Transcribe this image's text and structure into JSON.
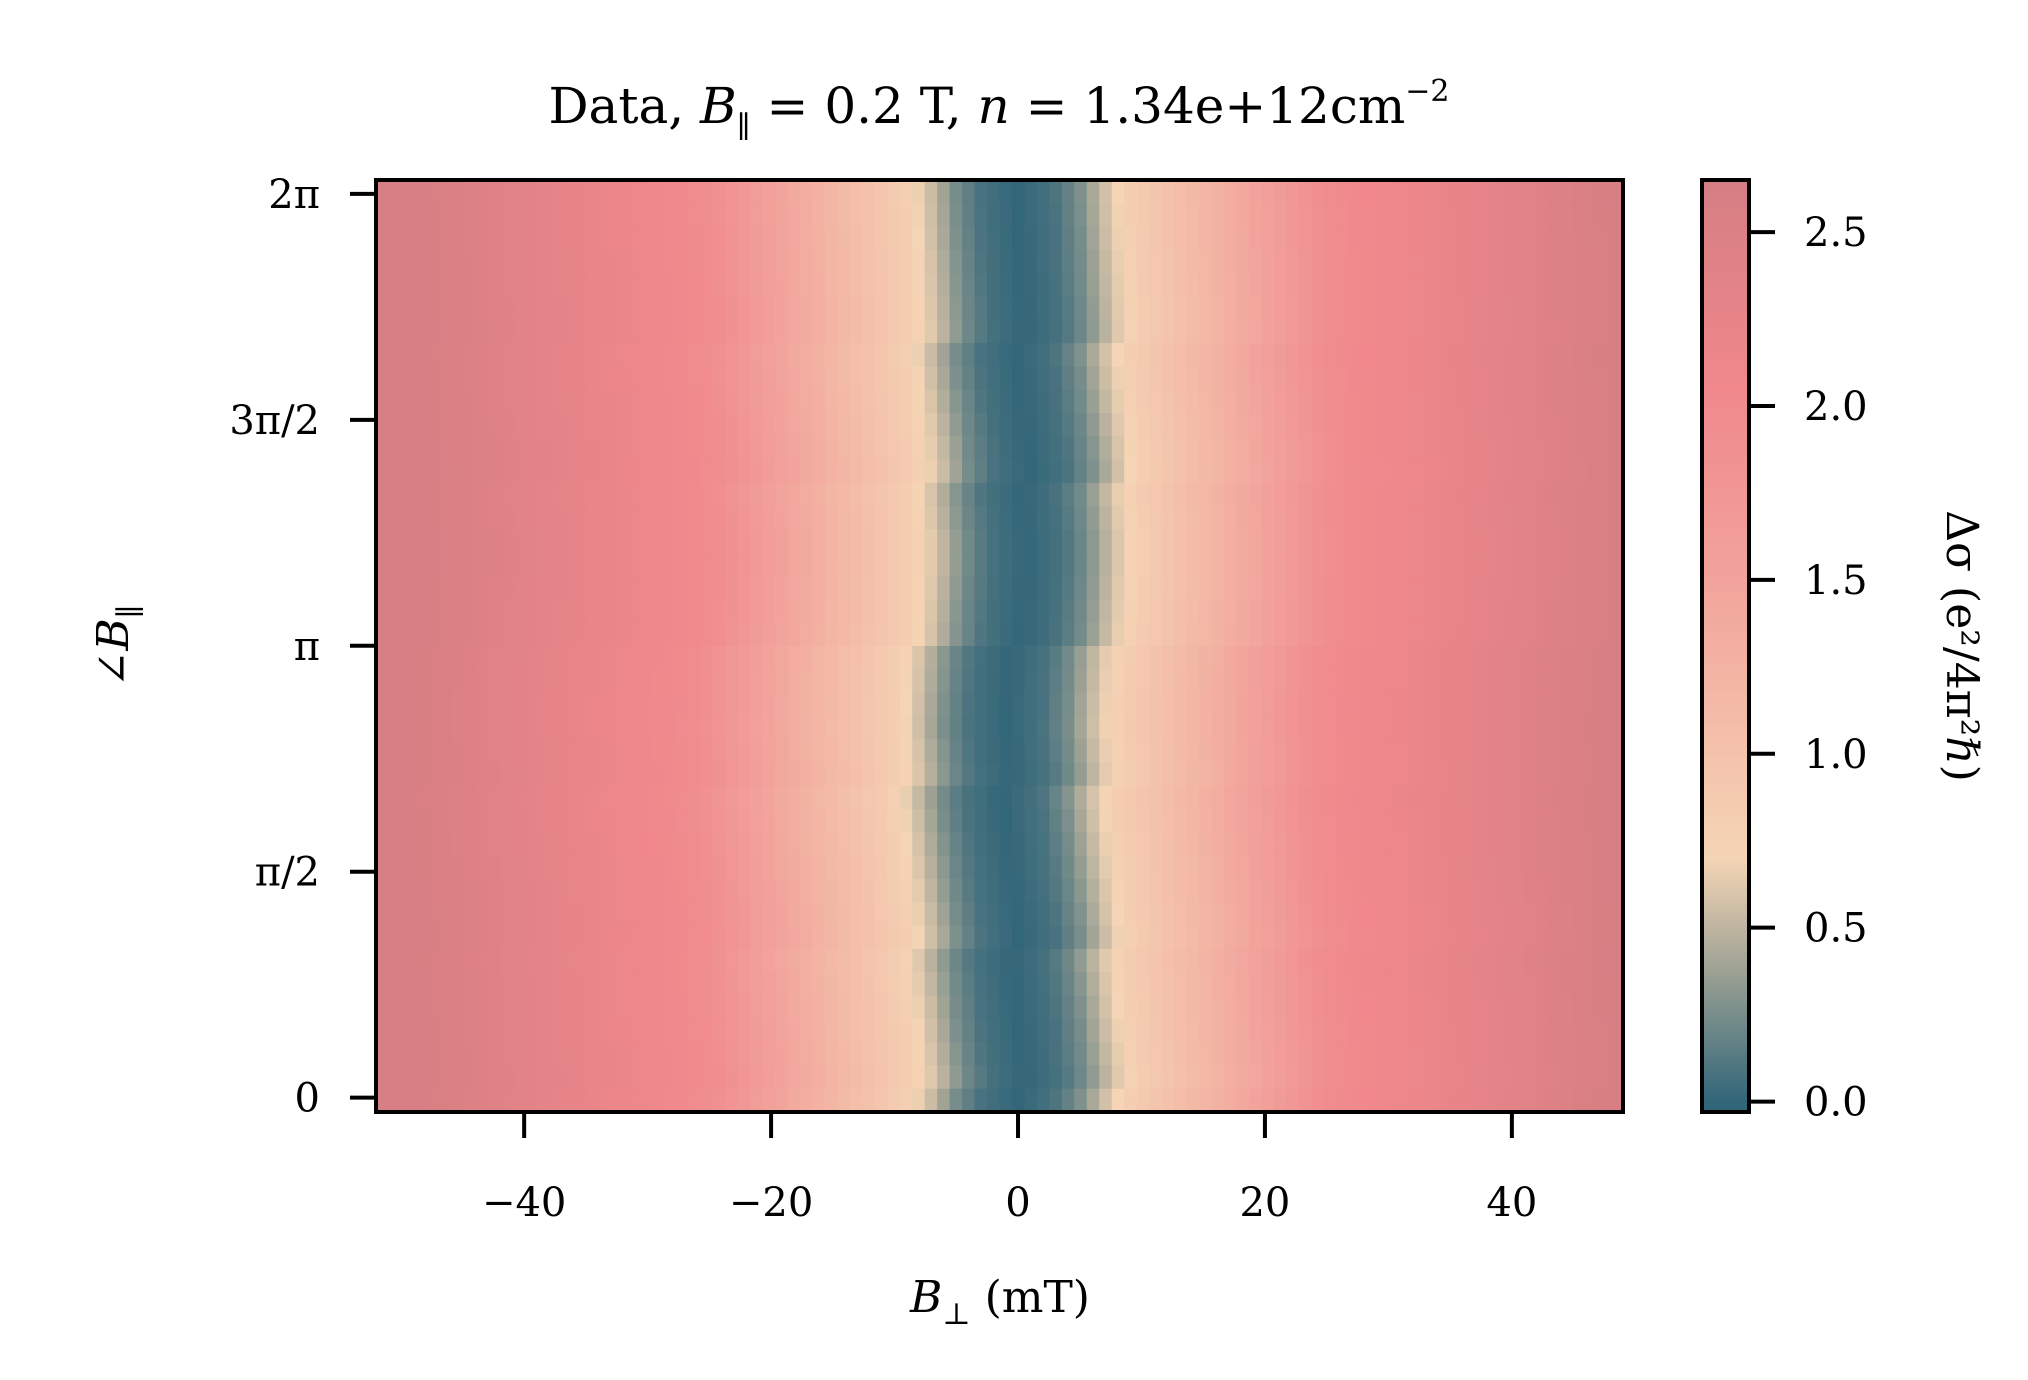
{
  "chart_data": {
    "type": "heatmap",
    "title": {
      "prefix": "Data, ",
      "b_symbol": "B",
      "b_subscript": "∥",
      "b_value": " = 0.2 T, ",
      "n_symbol": "n",
      "n_value": " = 1.34e+12cm",
      "n_exponent": "−2"
    },
    "xlabel": {
      "symbol": "B",
      "subscript": "⊥",
      "unit": " (mT)"
    },
    "ylabel": {
      "prefix": "∠",
      "symbol": "B",
      "subscript": "∥"
    },
    "colorbar_label": {
      "text": "Δσ (e²/4π²ℏ)"
    },
    "xlim": [
      -52,
      49
    ],
    "ylim": [
      -0.1,
      6.38
    ],
    "x_ticks": [
      {
        "value": -40,
        "label": "−40"
      },
      {
        "value": -20,
        "label": "−20"
      },
      {
        "value": 0,
        "label": "0"
      },
      {
        "value": 20,
        "label": "20"
      },
      {
        "value": 40,
        "label": "40"
      }
    ],
    "y_ticks": [
      {
        "value": 0,
        "label": "0"
      },
      {
        "value": 1.5708,
        "label": "π/2"
      },
      {
        "value": 3.1416,
        "label": "π"
      },
      {
        "value": 4.7124,
        "label": "3π/2"
      },
      {
        "value": 6.2832,
        "label": "2π"
      }
    ],
    "colorbar": {
      "range": [
        -0.03,
        2.65
      ],
      "ticks": [
        {
          "value": 0.0,
          "label": "0.0"
        },
        {
          "value": 0.5,
          "label": "0.5"
        },
        {
          "value": 1.0,
          "label": "1.0"
        },
        {
          "value": 1.5,
          "label": "1.5"
        },
        {
          "value": 2.0,
          "label": "2.0"
        },
        {
          "value": 2.5,
          "label": "2.5"
        }
      ],
      "colormap": [
        {
          "value": 0.0,
          "color": "#326679"
        },
        {
          "value": 0.4,
          "color": "#a3a596"
        },
        {
          "value": 0.7,
          "color": "#f5d5b5"
        },
        {
          "value": 1.5,
          "color": "#f2a39b"
        },
        {
          "value": 2.05,
          "color": "#f0888c"
        },
        {
          "value": 2.65,
          "color": "#d47e83"
        }
      ]
    },
    "profile": {
      "x_mT": [
        0,
        3,
        5,
        7,
        9,
        12,
        16,
        20,
        25,
        28,
        35,
        40,
        45,
        49
      ],
      "delta_sigma": [
        0.0,
        0.08,
        0.25,
        0.55,
        0.8,
        1.0,
        1.25,
        1.55,
        1.95,
        2.05,
        2.2,
        2.35,
        2.5,
        2.6
      ]
    },
    "center_shift": {
      "phi": [
        0,
        1.0,
        2.0,
        2.6,
        3.14,
        3.8,
        4.5,
        5.2,
        6.28
      ],
      "x_mT": [
        0.3,
        -0.2,
        -0.8,
        -1.0,
        -0.2,
        0.8,
        0.6,
        0.2,
        0.3
      ]
    }
  }
}
